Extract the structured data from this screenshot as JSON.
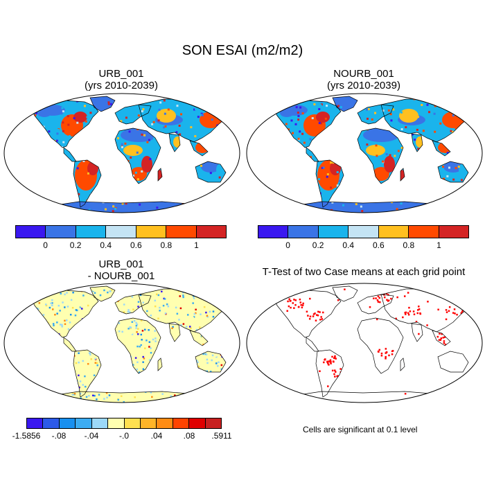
{
  "title": "SON ESAI (m2/m2)",
  "panels": [
    {
      "title_line1": "URB_001",
      "title_line2": "(yrs 2010-2039)"
    },
    {
      "title_line1": "NOURB_001",
      "title_line2": "(yrs 2010-2039)"
    },
    {
      "title_line1": "URB_001",
      "title_line2": "- NOURB_001"
    },
    {
      "title_line1": "T-Test of two Case means at each grid point",
      "title_line2": ""
    }
  ],
  "colorbar_main": {
    "colors": [
      "#3a18f0",
      "#3a74e6",
      "#1ab4ec",
      "#c4e4f4",
      "#ffc020",
      "#ff4a00",
      "#d42424"
    ],
    "labels": [
      "0",
      "0.2",
      "0.4",
      "0.6",
      "0.8",
      "1"
    ]
  },
  "colorbar_diff": {
    "colors": [
      "#3a18f0",
      "#2c5ae8",
      "#1890f0",
      "#3cacf2",
      "#9cd8f8",
      "#ffffb0",
      "#ffe050",
      "#ffb428",
      "#ff8c14",
      "#ff4400",
      "#e00000",
      "#c82020"
    ],
    "labels": [
      "-1.5856",
      "-.08",
      "-.04",
      "-.0",
      ".04",
      ".08",
      ".5911"
    ]
  },
  "ttest_note": "Cells are significant at 0.1 level",
  "colors": {
    "ocean": "#ffffff",
    "land_base": "#3a74e6",
    "outline": "#000000"
  }
}
